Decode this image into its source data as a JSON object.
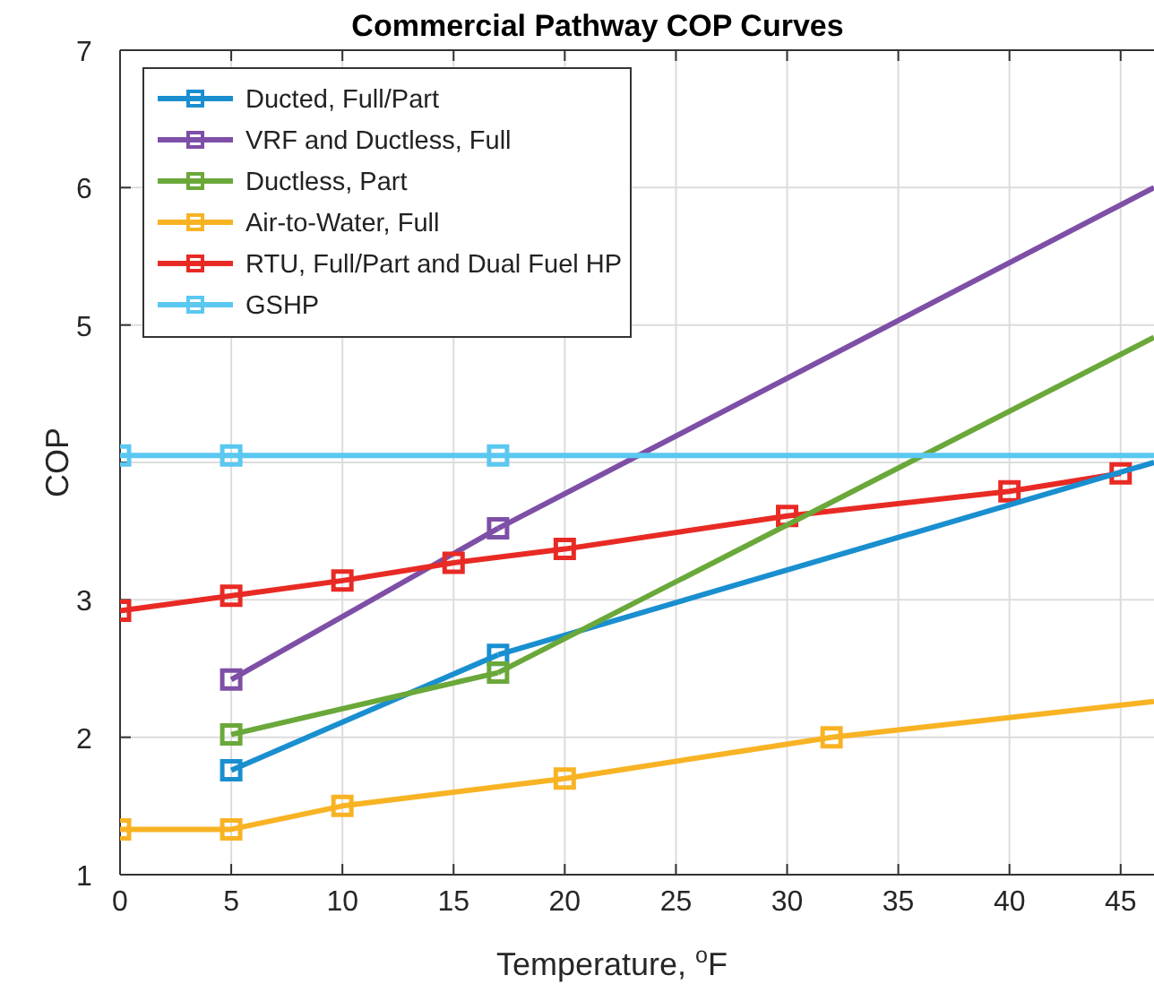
{
  "chart_data": {
    "type": "line",
    "title": "Commercial Pathway COP Curves",
    "xlabel": "Temperature, $^{o}$F",
    "ylabel": "COP",
    "xlim": [
      0,
      46.5
    ],
    "xticks": [
      0,
      5,
      10,
      15,
      20,
      25,
      30,
      35,
      40,
      45
    ],
    "ylim": [
      1,
      7
    ],
    "yticks": [
      1,
      2,
      3,
      {
        "value": 4,
        "label": null
      },
      5,
      6,
      7
    ],
    "grid": true,
    "legend": "top left",
    "marker": "square",
    "line_style": "solid",
    "series": [
      {
        "name": "Ducted, Full/Part",
        "color": "#1a8fd0",
        "x": [
          5,
          17
        ],
        "values": [
          1.76,
          2.6
        ]
      },
      {
        "name": "VRF and Ductless, Full",
        "color": "#7e4fa6",
        "x": [
          5,
          17
        ],
        "values": [
          2.42,
          3.52
        ]
      },
      {
        "name": "Ductless, Part",
        "color": "#6aa83a",
        "x": [
          5,
          17
        ],
        "values": [
          2.02,
          2.47
        ]
      },
      {
        "name": "Air-to-Water, Full",
        "color": "#f8b324",
        "x": [
          0,
          5,
          10,
          20,
          32
        ],
        "values": [
          1.33,
          1.33,
          1.5,
          1.7,
          2.0
        ]
      },
      {
        "name": "RTU, Full/Part and Dual Fuel HP",
        "color": "#e82a24",
        "x": [
          0,
          5,
          10,
          15,
          20,
          30,
          40,
          45
        ],
        "values": [
          2.92,
          3.03,
          3.14,
          3.27,
          3.37,
          3.61,
          3.79,
          3.92
        ]
      },
      {
        "name": "GSHP",
        "color": "#5ac8f0",
        "x": [
          0,
          5,
          17
        ],
        "values": [
          4.05,
          4.05,
          4.05
        ]
      },
      {
        "color": "#1a8fd0",
        "marker": "none",
        "x": [
          17,
          46.5
        ],
        "values": [
          2.6,
          4.0
        ]
      },
      {
        "color": "#7e4fa6",
        "marker": "none",
        "x": [
          17,
          46.5
        ],
        "values": [
          3.52,
          6.0
        ]
      },
      {
        "color": "#6aa83a",
        "marker": "none",
        "x": [
          17,
          46.5
        ],
        "values": [
          2.47,
          4.91
        ]
      },
      {
        "color": "#f8b324",
        "marker": "none",
        "x": [
          32,
          46.5
        ],
        "values": [
          2.0,
          2.26
        ]
      },
      {
        "color": "#5ac8f0",
        "marker": "none",
        "x": [
          17,
          46.5
        ],
        "values": [
          4.05,
          4.05
        ]
      }
    ]
  }
}
